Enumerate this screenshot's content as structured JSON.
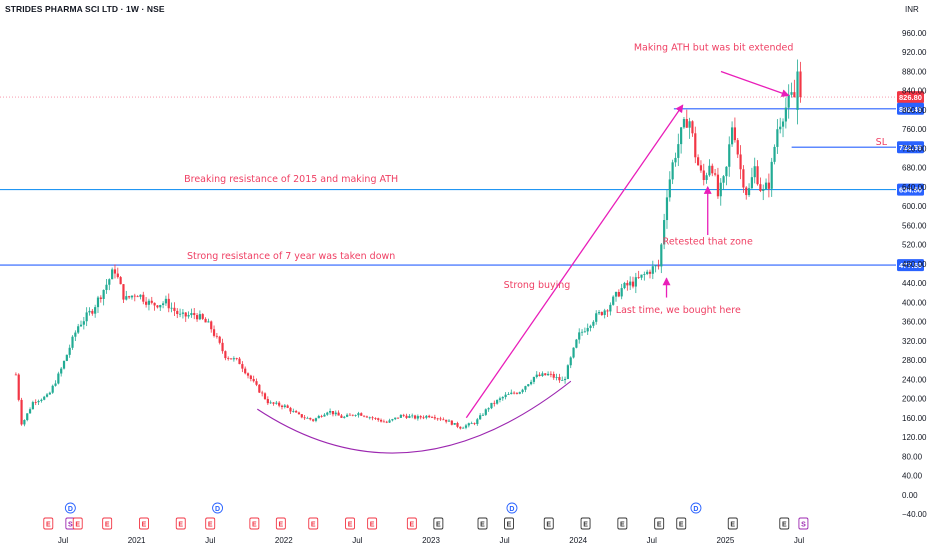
{
  "header": {
    "title": "STRIDES PHARMA SCI LTD · 1W · NSE",
    "currency": "INR"
  },
  "chart_data": {
    "type": "candlestick",
    "symbol": "STRIDES PHARMA SCI LTD",
    "interval": "1W",
    "exchange": "NSE",
    "ylim": [
      -60,
      1000
    ],
    "ytick_values": [
      960,
      920,
      880,
      840,
      800,
      760,
      720,
      680,
      640,
      600,
      560,
      520,
      480,
      440,
      400,
      360,
      320,
      280,
      240,
      200,
      160,
      120,
      80,
      40,
      0,
      -40
    ],
    "ytick_labels": [
      "960.00",
      "920.00",
      "880.00",
      "840.00",
      "800.00",
      "760.00",
      "720.00",
      "680.00",
      "640.00",
      "600.00",
      "560.00",
      "520.00",
      "480.00",
      "440.00",
      "400.00",
      "360.00",
      "320.00",
      "280.00",
      "240.00",
      "200.00",
      "160.00",
      "120.00",
      "80.00",
      "40.00",
      "0.00",
      "−40.00"
    ],
    "x_labels": [
      {
        "label": "Jul",
        "t": 2020.5
      },
      {
        "label": "2021",
        "t": 2021.0
      },
      {
        "label": "Jul",
        "t": 2021.5
      },
      {
        "label": "2022",
        "t": 2022.0
      },
      {
        "label": "Jul",
        "t": 2022.5
      },
      {
        "label": "2023",
        "t": 2023.0
      },
      {
        "label": "Jul",
        "t": 2023.5
      },
      {
        "label": "2024",
        "t": 2024.0
      },
      {
        "label": "Jul",
        "t": 2024.5
      },
      {
        "label": "2025",
        "t": 2025.0
      },
      {
        "label": "Jul",
        "t": 2025.5
      }
    ],
    "xlim": [
      2020.18,
      2025.58
    ],
    "price_path": [
      [
        2020.18,
        250
      ],
      [
        2020.22,
        145
      ],
      [
        2020.3,
        195
      ],
      [
        2020.4,
        205
      ],
      [
        2020.48,
        255
      ],
      [
        2020.6,
        350
      ],
      [
        2020.7,
        385
      ],
      [
        2020.8,
        440
      ],
      [
        2020.85,
        470
      ],
      [
        2020.92,
        405
      ],
      [
        2021.0,
        420
      ],
      [
        2021.1,
        395
      ],
      [
        2021.2,
        400
      ],
      [
        2021.3,
        370
      ],
      [
        2021.4,
        375
      ],
      [
        2021.5,
        350
      ],
      [
        2021.6,
        290
      ],
      [
        2021.7,
        275
      ],
      [
        2021.8,
        230
      ],
      [
        2021.9,
        190
      ],
      [
        2022.0,
        185
      ],
      [
        2022.1,
        165
      ],
      [
        2022.2,
        155
      ],
      [
        2022.3,
        175
      ],
      [
        2022.4,
        160
      ],
      [
        2022.5,
        170
      ],
      [
        2022.6,
        160
      ],
      [
        2022.7,
        150
      ],
      [
        2022.8,
        165
      ],
      [
        2022.9,
        160
      ],
      [
        2023.0,
        165
      ],
      [
        2023.1,
        155
      ],
      [
        2023.2,
        140
      ],
      [
        2023.3,
        150
      ],
      [
        2023.4,
        185
      ],
      [
        2023.5,
        205
      ],
      [
        2023.6,
        215
      ],
      [
        2023.7,
        245
      ],
      [
        2023.8,
        250
      ],
      [
        2023.9,
        235
      ],
      [
        2024.0,
        330
      ],
      [
        2024.1,
        365
      ],
      [
        2024.2,
        390
      ],
      [
        2024.3,
        430
      ],
      [
        2024.4,
        445
      ],
      [
        2024.5,
        470
      ],
      [
        2024.55,
        475
      ],
      [
        2024.6,
        625
      ],
      [
        2024.65,
        700
      ],
      [
        2024.7,
        750
      ],
      [
        2024.75,
        790
      ],
      [
        2024.8,
        700
      ],
      [
        2024.85,
        650
      ],
      [
        2024.9,
        700
      ],
      [
        2024.95,
        620
      ],
      [
        2025.0,
        660
      ],
      [
        2025.05,
        780
      ],
      [
        2025.1,
        680
      ],
      [
        2025.15,
        620
      ],
      [
        2025.2,
        680
      ],
      [
        2025.25,
        625
      ],
      [
        2025.3,
        650
      ],
      [
        2025.35,
        760
      ],
      [
        2025.4,
        800
      ],
      [
        2025.45,
        826
      ]
    ],
    "horizontal_levels": [
      {
        "value": 826.8,
        "label": "826.80",
        "style": "dotted",
        "color": "#ef3f63",
        "badge_color": "#f23645"
      },
      {
        "value": 802.45,
        "label": "802.45",
        "style": "solid",
        "color": "#2962ff",
        "badge_color": "#2962ff",
        "x_start": 2024.65
      },
      {
        "value": 722.55,
        "label": "722.55",
        "style": "solid",
        "color": "#2962ff",
        "badge_color": "#2962ff",
        "x_start": 2025.45
      },
      {
        "value": 634.5,
        "label": "634.50",
        "style": "solid",
        "color": "#2196f3",
        "badge_color": "#2962ff"
      },
      {
        "value": 477.5,
        "label": "477.50",
        "style": "solid",
        "color": "#2962ff",
        "badge_color": "#2962ff"
      }
    ],
    "sl_label": "SL",
    "annotations": [
      {
        "text": "Making ATH but was bit extended",
        "t": 2024.92,
        "y": 924
      },
      {
        "text": "Breaking resistance of 2015 and making ATH",
        "t": 2022.05,
        "y": 650
      },
      {
        "text": "Strong resistance of 7 year was taken down",
        "t": 2022.05,
        "y": 490
      },
      {
        "text": "Strong buying",
        "t": 2023.72,
        "y": 430
      },
      {
        "text": "Retested that zone",
        "t": 2024.88,
        "y": 520
      },
      {
        "text": "Last time, we bought here",
        "t": 2024.68,
        "y": 378
      }
    ],
    "events": [
      {
        "t": 2020.4,
        "k": "E"
      },
      {
        "t": 2020.55,
        "k": "S"
      },
      {
        "t": 2020.6,
        "k": "E"
      },
      {
        "t": 2020.8,
        "k": "E"
      },
      {
        "t": 2021.05,
        "k": "E"
      },
      {
        "t": 2021.3,
        "k": "E"
      },
      {
        "t": 2021.5,
        "k": "E"
      },
      {
        "t": 2021.8,
        "k": "E"
      },
      {
        "t": 2021.98,
        "k": "E"
      },
      {
        "t": 2022.2,
        "k": "E"
      },
      {
        "t": 2022.45,
        "k": "E"
      },
      {
        "t": 2022.6,
        "k": "E"
      },
      {
        "t": 2022.87,
        "k": "E"
      },
      {
        "t": 2023.05,
        "k": "E"
      },
      {
        "t": 2023.35,
        "k": "E"
      },
      {
        "t": 2023.53,
        "k": "E"
      },
      {
        "t": 2023.8,
        "k": "E"
      },
      {
        "t": 2024.05,
        "k": "E"
      },
      {
        "t": 2024.3,
        "k": "E"
      },
      {
        "t": 2024.55,
        "k": "E"
      },
      {
        "t": 2024.7,
        "k": "E"
      },
      {
        "t": 2025.05,
        "k": "E"
      },
      {
        "t": 2025.4,
        "k": "E"
      },
      {
        "t": 2025.53,
        "k": "S"
      }
    ],
    "dividends": [
      {
        "t": 2020.55,
        "k": "D"
      },
      {
        "t": 2021.55,
        "k": "D"
      },
      {
        "t": 2023.55,
        "k": "D"
      },
      {
        "t": 2024.8,
        "k": "D"
      }
    ],
    "colors": {
      "up": "#22ab94",
      "down": "#f23645",
      "arrow": "#e91eb9",
      "curve": "#9c27b0",
      "annotation": "#ef3f63"
    }
  }
}
